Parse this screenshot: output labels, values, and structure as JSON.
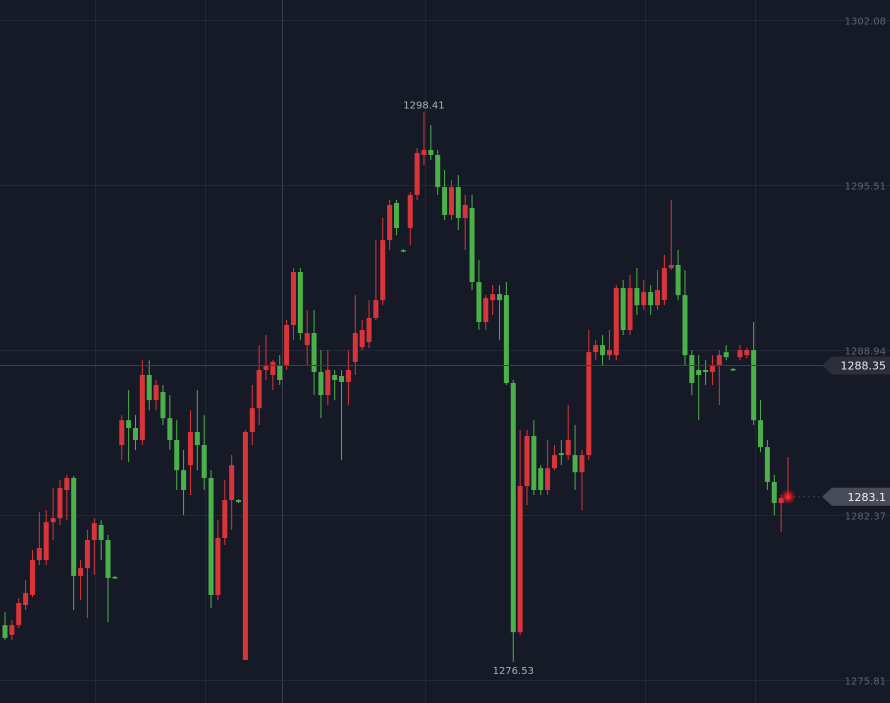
{
  "chart_data": {
    "type": "candlestick",
    "up_color": "#d8353b",
    "down_color": "#4cb04a",
    "grid": true,
    "ylim": [
      1274.89,
      1302.88
    ],
    "yticks": [
      1302.08,
      1295.51,
      1288.94,
      1282.37,
      1275.81
    ],
    "crosshair": 1288.35,
    "open": [
      1277.99,
      1277.6,
      1277.99,
      1278.79,
      1279.19,
      1280.58,
      1280.58,
      1282.09,
      1282.25,
      1283.37,
      1283.85,
      1279.95,
      1280.26,
      1281.38,
      1281.98,
      1281.38,
      1279.91,
      1285.16,
      1286.15,
      1285.84,
      1285.36,
      1287.95,
      1286.95,
      1287.27,
      1286.23,
      1285.36,
      1284.16,
      1284.36,
      1285.68,
      1285.16,
      1283.85,
      1279.19,
      1281.46,
      1282.97,
      1282.97,
      1276.6,
      1285.68,
      1286.63,
      1288.15,
      1287.95,
      1288.35,
      1288.35,
      1289.94,
      1292.05,
      1289.14,
      1289.62,
      1288.07,
      1287.15,
      1287.95,
      1287.91,
      1287.67,
      1288.47,
      1289.06,
      1289.26,
      1290.22,
      1290.93,
      1293.32,
      1294.8,
      1292.92,
      1293.8,
      1295.12,
      1296.71,
      1296.91,
      1296.71,
      1295.43,
      1294.32,
      1295.43,
      1294.2,
      1294.6,
      1291.65,
      1290.06,
      1290.93,
      1291.17,
      1291.13,
      1287.63,
      1277.71,
      1283.53,
      1285.52,
      1284.24,
      1283.37,
      1284.24,
      1284.84,
      1284.76,
      1284.76,
      1284.08,
      1284.76,
      1288.86,
      1289.14,
      1288.74,
      1288.74,
      1291.41,
      1289.74,
      1291.41,
      1290.73,
      1291.25,
      1290.73,
      1290.93,
      1292.21,
      1292.33,
      1291.13,
      1288.74,
      1288.15,
      1288.15,
      1288.07,
      1288.35,
      1288.86,
      1288.19,
      1288.66,
      1288.74,
      1288.94,
      1286.15,
      1285.08,
      1283.69,
      1282.85,
      1283.05
    ],
    "high": [
      1278.51,
      1278.19,
      1279.07,
      1279.78,
      1280.98,
      1282.49,
      1282.57,
      1283.45,
      1283.77,
      1283.97,
      1283.93,
      1280.58,
      1281.78,
      1282.25,
      1282.17,
      1281.58,
      1279.95,
      1286.35,
      1287.35,
      1286.35,
      1288.54,
      1288.54,
      1287.75,
      1287.55,
      1287.15,
      1286.15,
      1284.96,
      1286.55,
      1287.35,
      1286.35,
      1284.16,
      1282.17,
      1283.77,
      1284.76,
      1283.01,
      1285.76,
      1287.55,
      1289.14,
      1289.54,
      1288.54,
      1288.74,
      1290.14,
      1292.21,
      1292.21,
      1290.54,
      1290.54,
      1288.94,
      1288.94,
      1288.15,
      1288.15,
      1288.94,
      1291.13,
      1290.14,
      1290.93,
      1293.32,
      1294.2,
      1294.92,
      1294.92,
      1292.96,
      1295.23,
      1296.99,
      1298.41,
      1297.9,
      1296.91,
      1296.11,
      1295.71,
      1295.91,
      1295.12,
      1295.12,
      1292.53,
      1291.13,
      1291.53,
      1291.53,
      1291.65,
      1287.75,
      1285.76,
      1285.76,
      1286.15,
      1284.36,
      1285.36,
      1285.16,
      1285.36,
      1286.75,
      1285.96,
      1284.96,
      1289.74,
      1289.34,
      1289.54,
      1289.74,
      1291.53,
      1291.73,
      1291.93,
      1292.21,
      1291.73,
      1291.53,
      1292.13,
      1292.73,
      1294.92,
      1292.92,
      1292.13,
      1288.94,
      1288.74,
      1288.54,
      1288.74,
      1288.94,
      1289.14,
      1288.23,
      1289.14,
      1289.02,
      1290.06,
      1286.95,
      1285.36,
      1283.97,
      1283.17,
      1284.68
    ],
    "low": [
      1277.4,
      1277.4,
      1277.87,
      1278.59,
      1279.11,
      1280.38,
      1280.38,
      1281.38,
      1281.98,
      1282.17,
      1278.59,
      1278.99,
      1278.27,
      1279.99,
      1280.58,
      1278.11,
      1279.83,
      1284.56,
      1284.48,
      1284.96,
      1285.16,
      1286.55,
      1286.55,
      1285.96,
      1284.96,
      1283.37,
      1282.37,
      1283.17,
      1284.16,
      1283.37,
      1278.67,
      1278.99,
      1281.18,
      1281.78,
      1282.85,
      1276.6,
      1285.16,
      1285.96,
      1287.75,
      1287.35,
      1287.55,
      1288.15,
      1289.34,
      1289.34,
      1288.35,
      1287.15,
      1286.23,
      1286.75,
      1286.95,
      1284.56,
      1286.75,
      1287.95,
      1288.94,
      1289.02,
      1290.14,
      1290.73,
      1292.92,
      1293.52,
      1292.84,
      1293.12,
      1294.92,
      1296.31,
      1296.51,
      1295.12,
      1294.12,
      1294.12,
      1293.72,
      1292.92,
      1291.33,
      1289.74,
      1289.74,
      1290.34,
      1289.34,
      1287.55,
      1276.53,
      1277.6,
      1282.77,
      1283.17,
      1283.17,
      1283.17,
      1284.16,
      1284.36,
      1284.56,
      1283.37,
      1282.57,
      1284.56,
      1288.54,
      1288.35,
      1288.54,
      1288.54,
      1289.54,
      1289.54,
      1290.34,
      1290.54,
      1290.34,
      1290.54,
      1290.73,
      1292.13,
      1290.93,
      1288.35,
      1287.15,
      1286.15,
      1287.55,
      1287.55,
      1286.75,
      1288.54,
      1288.11,
      1288.54,
      1288.62,
      1285.96,
      1284.88,
      1283.37,
      1282.37,
      1281.7,
      1282.97
    ],
    "close": [
      1277.48,
      1277.99,
      1278.87,
      1279.27,
      1280.58,
      1281.06,
      1282.09,
      1282.25,
      1283.45,
      1283.85,
      1279.95,
      1280.26,
      1281.38,
      1282.05,
      1281.38,
      1279.87,
      1279.87,
      1286.15,
      1285.84,
      1285.36,
      1287.95,
      1286.95,
      1287.55,
      1286.23,
      1285.36,
      1284.16,
      1283.37,
      1285.68,
      1285.16,
      1283.85,
      1279.19,
      1281.46,
      1282.97,
      1284.36,
      1282.89,
      1285.68,
      1286.63,
      1288.15,
      1288.35,
      1288.47,
      1287.75,
      1289.94,
      1292.05,
      1289.62,
      1289.62,
      1288.07,
      1287.15,
      1288.15,
      1287.75,
      1287.67,
      1288.15,
      1289.62,
      1289.74,
      1290.22,
      1290.93,
      1293.32,
      1294.72,
      1293.8,
      1292.88,
      1295.12,
      1296.79,
      1296.91,
      1296.71,
      1295.43,
      1294.32,
      1295.43,
      1294.2,
      1294.72,
      1291.65,
      1290.06,
      1291.01,
      1291.17,
      1290.93,
      1287.63,
      1277.71,
      1283.53,
      1285.52,
      1283.37,
      1283.37,
      1284.24,
      1284.76,
      1284.76,
      1285.36,
      1284.08,
      1284.76,
      1288.86,
      1289.14,
      1288.74,
      1288.94,
      1291.41,
      1289.74,
      1291.41,
      1290.73,
      1291.25,
      1290.73,
      1291.33,
      1292.21,
      1292.33,
      1291.13,
      1288.74,
      1287.63,
      1287.95,
      1288.07,
      1288.35,
      1288.74,
      1288.66,
      1288.15,
      1288.94,
      1288.94,
      1286.15,
      1285.08,
      1283.69,
      1282.85,
      1283.05,
      1283.1
    ]
  }
}
